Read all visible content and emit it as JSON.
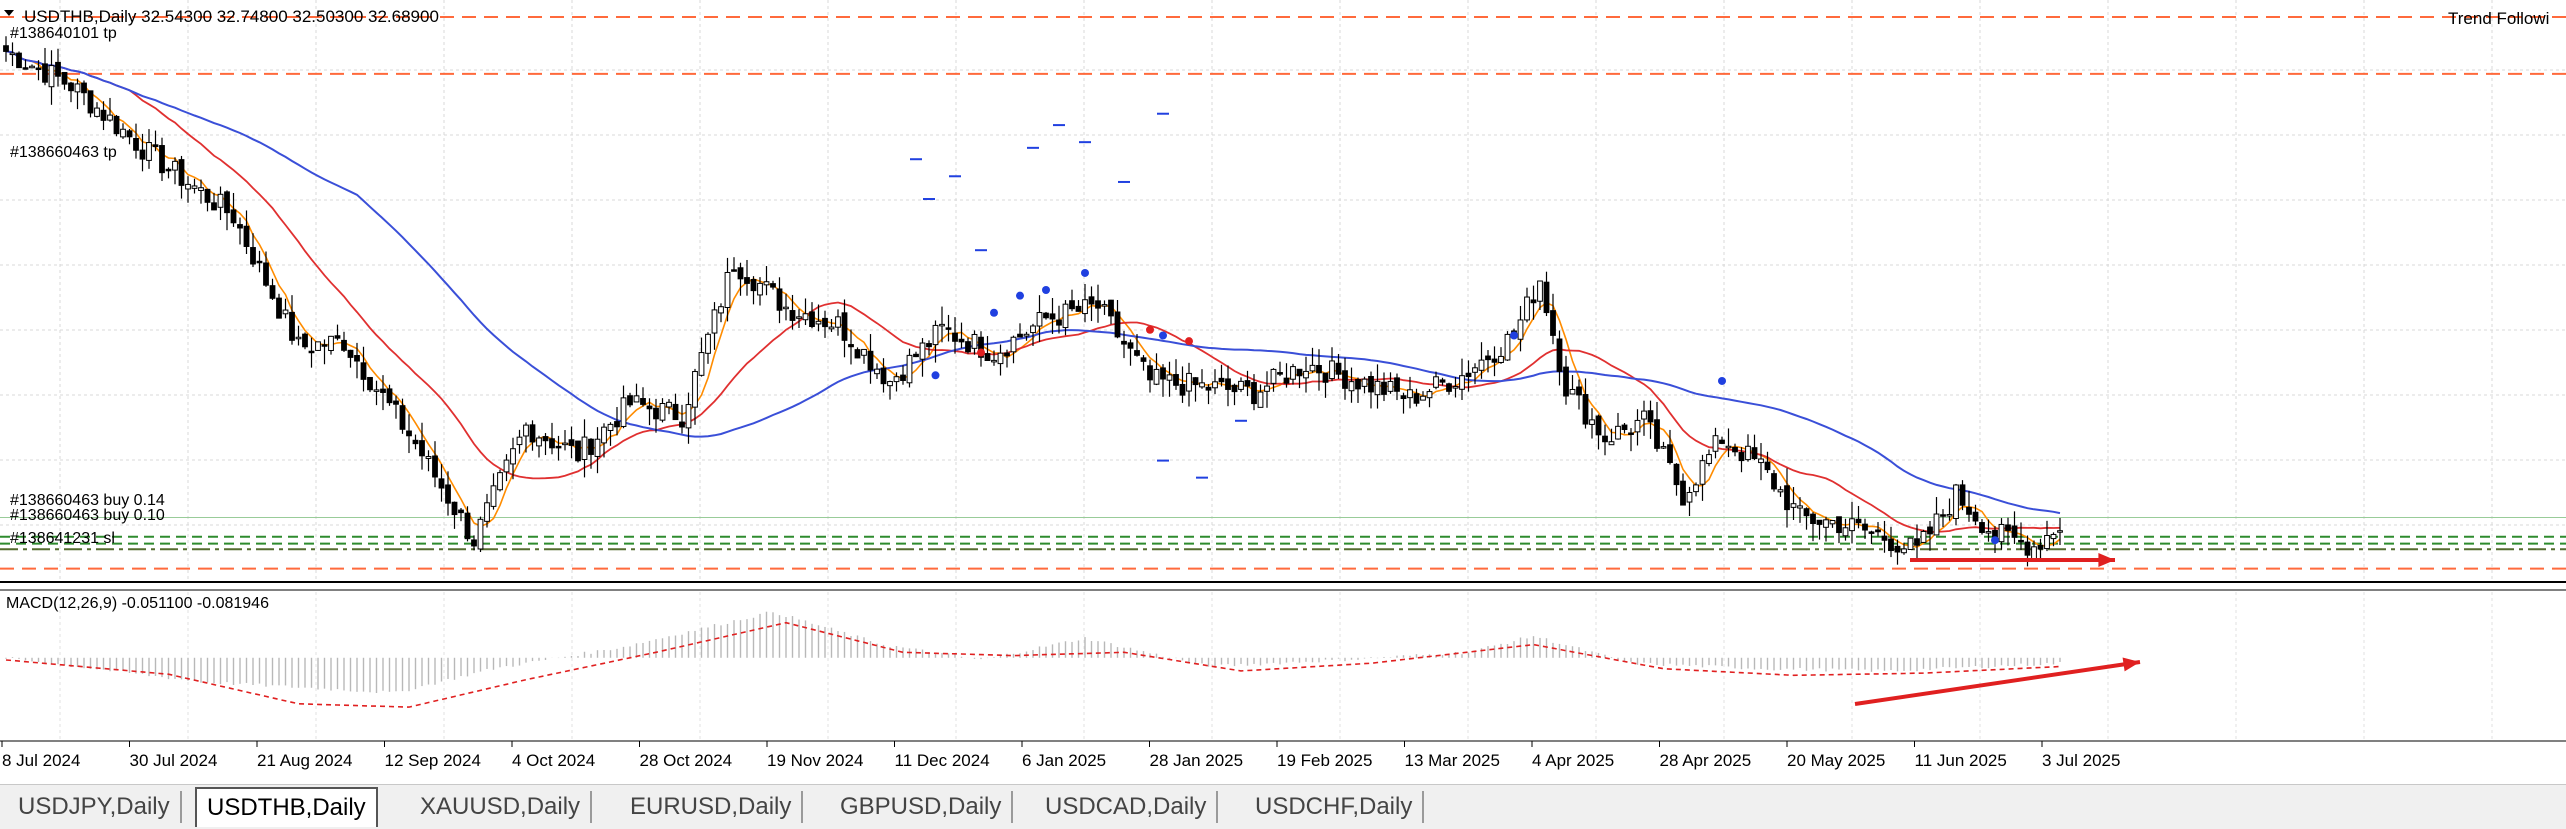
{
  "chart_header": {
    "symbol_title": "USDTHB,Daily  32.54300 32.74800 32.50300 32.68900",
    "indicator_name": "Trend Followi"
  },
  "order_labels": [
    {
      "text": "#138640101 tp",
      "kind": "tp"
    },
    {
      "text": "#138660463 tp",
      "kind": "tp"
    },
    {
      "text": "#138660463 buy 0.14",
      "kind": "buy"
    },
    {
      "text": "#138660463 buy 0.10",
      "kind": "buy"
    },
    {
      "text": "#138641231 sl",
      "kind": "sl"
    }
  ],
  "macd_label": "MACD(12,26,9) -0.051100 -0.081946",
  "colors": {
    "bull_candle": "#ffffff",
    "bear_candle": "#000000",
    "ma_fast": "#ff8c00",
    "ma_mid": "#e03030",
    "ma_slow": "#3a4fd8",
    "tp_sl_line": "#ff6a3c",
    "buy_line": "#2e8b2e",
    "annotation_arrow": "#e02020",
    "signal_up": "#2040e0",
    "signal_down": "#e02020"
  },
  "chart_data": {
    "type": "candlestick",
    "symbol": "USDTHB",
    "timeframe": "Daily",
    "x_tick_labels": [
      "8 Jul 2024",
      "30 Jul 2024",
      "21 Aug 2024",
      "12 Sep 2024",
      "4 Oct 2024",
      "28 Oct 2024",
      "19 Nov 2024",
      "11 Dec 2024",
      "6 Jan 2025",
      "28 Jan 2025",
      "19 Feb 2025",
      "13 Mar 2025",
      "4 Apr 2025",
      "28 Apr 2025",
      "20 May 2025",
      "11 Jun 2025",
      "3 Jul 2025"
    ],
    "price_ylim": [
      32.2,
      37.3
    ],
    "close_path": [
      {
        "i": 0,
        "v": 36.85
      },
      {
        "i": 10,
        "v": 36.55
      },
      {
        "i": 22,
        "v": 35.95
      },
      {
        "i": 35,
        "v": 35.4
      },
      {
        "i": 45,
        "v": 34.25
      },
      {
        "i": 52,
        "v": 34.3
      },
      {
        "i": 63,
        "v": 33.4
      },
      {
        "i": 72,
        "v": 32.55
      },
      {
        "i": 80,
        "v": 33.55
      },
      {
        "i": 88,
        "v": 33.3
      },
      {
        "i": 96,
        "v": 33.75
      },
      {
        "i": 104,
        "v": 33.65
      },
      {
        "i": 112,
        "v": 35.0
      },
      {
        "i": 120,
        "v": 34.6
      },
      {
        "i": 128,
        "v": 34.45
      },
      {
        "i": 136,
        "v": 33.95
      },
      {
        "i": 144,
        "v": 34.4
      },
      {
        "i": 152,
        "v": 34.2
      },
      {
        "i": 160,
        "v": 34.5
      },
      {
        "i": 168,
        "v": 34.6
      },
      {
        "i": 176,
        "v": 33.95
      },
      {
        "i": 184,
        "v": 33.9
      },
      {
        "i": 192,
        "v": 33.85
      },
      {
        "i": 200,
        "v": 34.1
      },
      {
        "i": 208,
        "v": 33.95
      },
      {
        "i": 216,
        "v": 33.8
      },
      {
        "i": 224,
        "v": 34.0
      },
      {
        "i": 232,
        "v": 34.35
      },
      {
        "i": 236,
        "v": 34.85
      },
      {
        "i": 240,
        "v": 33.9
      },
      {
        "i": 246,
        "v": 33.45
      },
      {
        "i": 252,
        "v": 33.6
      },
      {
        "i": 258,
        "v": 32.95
      },
      {
        "i": 264,
        "v": 33.45
      },
      {
        "i": 270,
        "v": 33.2
      },
      {
        "i": 276,
        "v": 32.75
      },
      {
        "i": 282,
        "v": 32.7
      },
      {
        "i": 288,
        "v": 32.6
      },
      {
        "i": 294,
        "v": 32.45
      },
      {
        "i": 300,
        "v": 32.95
      },
      {
        "i": 306,
        "v": 32.6
      },
      {
        "i": 312,
        "v": 32.5
      },
      {
        "i": 316,
        "v": 32.69
      }
    ],
    "tp_sl_levels": [
      37.15,
      36.65,
      32.3
    ],
    "buy_levels": [
      32.58,
      32.52,
      32.47
    ],
    "macd_ylim": [
      -0.75,
      0.6
    ],
    "macd_histogram_path": [
      {
        "i": 0,
        "v": 0.0
      },
      {
        "i": 30,
        "v": -0.22
      },
      {
        "i": 60,
        "v": -0.32
      },
      {
        "i": 75,
        "v": -0.1
      },
      {
        "i": 95,
        "v": 0.1
      },
      {
        "i": 118,
        "v": 0.42
      },
      {
        "i": 135,
        "v": 0.12
      },
      {
        "i": 150,
        "v": -0.02
      },
      {
        "i": 166,
        "v": 0.18
      },
      {
        "i": 185,
        "v": -0.08
      },
      {
        "i": 205,
        "v": -0.02
      },
      {
        "i": 225,
        "v": 0.05
      },
      {
        "i": 235,
        "v": 0.2
      },
      {
        "i": 250,
        "v": -0.05
      },
      {
        "i": 270,
        "v": -0.1
      },
      {
        "i": 290,
        "v": -0.12
      },
      {
        "i": 316,
        "v": -0.05
      }
    ],
    "macd_signal_path": [
      {
        "i": 0,
        "v": -0.02
      },
      {
        "i": 25,
        "v": -0.15
      },
      {
        "i": 45,
        "v": -0.42
      },
      {
        "i": 62,
        "v": -0.45
      },
      {
        "i": 80,
        "v": -0.2
      },
      {
        "i": 100,
        "v": 0.05
      },
      {
        "i": 120,
        "v": 0.32
      },
      {
        "i": 138,
        "v": 0.05
      },
      {
        "i": 155,
        "v": 0.02
      },
      {
        "i": 172,
        "v": 0.05
      },
      {
        "i": 190,
        "v": -0.12
      },
      {
        "i": 210,
        "v": -0.05
      },
      {
        "i": 235,
        "v": 0.12
      },
      {
        "i": 255,
        "v": -0.1
      },
      {
        "i": 275,
        "v": -0.16
      },
      {
        "i": 295,
        "v": -0.14
      },
      {
        "i": 316,
        "v": -0.08
      }
    ]
  },
  "tabs": [
    {
      "label": "USDJPY,Daily",
      "active": false
    },
    {
      "label": "USDTHB,Daily",
      "active": true
    },
    {
      "label": "XAUUSD,Daily",
      "active": false
    },
    {
      "label": "EURUSD,Daily",
      "active": false
    },
    {
      "label": "GBPUSD,Daily",
      "active": false
    },
    {
      "label": "USDCAD,Daily",
      "active": false
    },
    {
      "label": "USDCHF,Daily",
      "active": false
    }
  ]
}
